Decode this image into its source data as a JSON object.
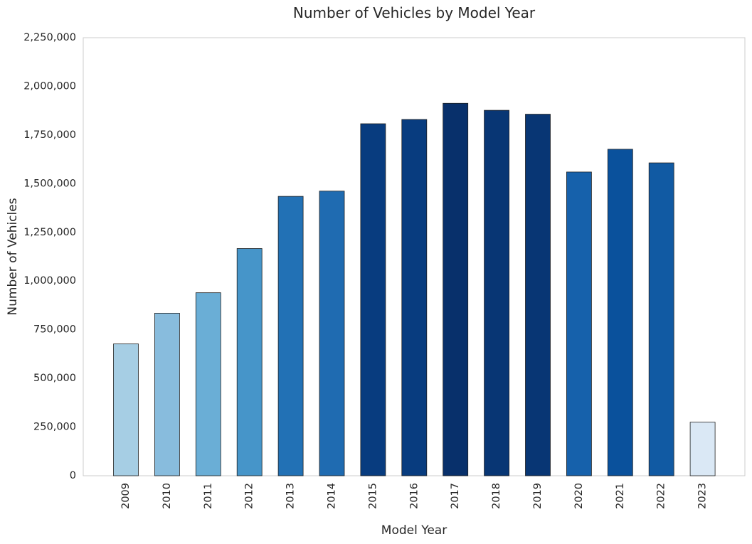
{
  "chart_data": {
    "type": "bar",
    "title": "Number of Vehicles by Model Year",
    "xlabel": "Model Year",
    "ylabel": "Number of Vehicles",
    "categories": [
      "2009",
      "2010",
      "2011",
      "2012",
      "2013",
      "2014",
      "2015",
      "2016",
      "2017",
      "2018",
      "2019",
      "2020",
      "2021",
      "2022",
      "2023"
    ],
    "values": [
      677000,
      835000,
      940000,
      1167000,
      1435000,
      1462000,
      1808000,
      1830000,
      1913000,
      1877000,
      1857000,
      1560000,
      1677000,
      1607000,
      275000
    ],
    "bar_colors": [
      "#a6cee4",
      "#88bcdd",
      "#6aaed6",
      "#4695c9",
      "#2271b5",
      "#1f6bb1",
      "#083c7f",
      "#083c7f",
      "#08306b",
      "#083674",
      "#083674",
      "#1661ab",
      "#0a519c",
      "#115aa3",
      "#dae8f5"
    ],
    "ylim": [
      0,
      2250000
    ],
    "yticks": [
      0,
      250000,
      500000,
      750000,
      1000000,
      1250000,
      1500000,
      1750000,
      2000000,
      2250000
    ],
    "ytick_labels": [
      "0",
      "250,000",
      "500,000",
      "750,000",
      "1,000,000",
      "1,250,000",
      "1,500,000",
      "1,750,000",
      "2,000,000",
      "2,250,000"
    ],
    "grid": false,
    "legend": "none"
  }
}
